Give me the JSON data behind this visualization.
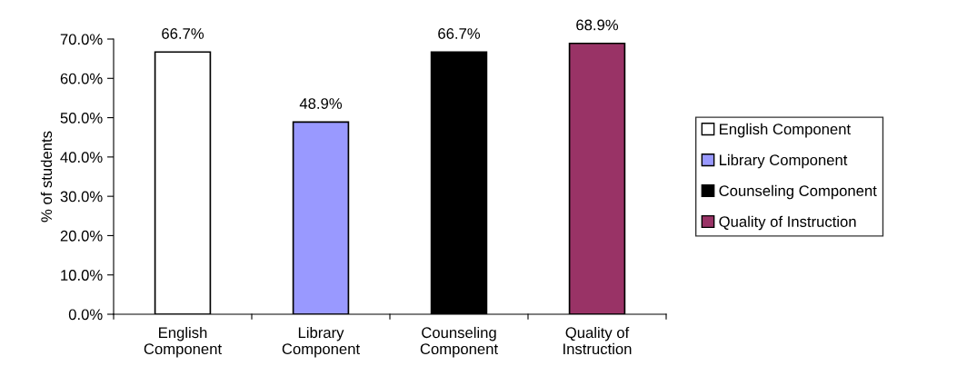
{
  "chart_data": {
    "type": "bar",
    "ylabel": "% of students",
    "categories": [
      "English\nComponent",
      "Library\nComponent",
      "Counseling\nComponent",
      "Quality of\nInstruction"
    ],
    "series": [
      {
        "name": "English Component",
        "color": "#ffffff",
        "values": [
          66.7,
          null,
          null,
          null
        ],
        "value_labels": [
          "66.7%",
          null,
          null,
          null
        ]
      },
      {
        "name": "Library Component",
        "color": "#9999ff",
        "values": [
          null,
          48.9,
          null,
          null
        ],
        "value_labels": [
          null,
          "48.9%",
          null,
          null
        ]
      },
      {
        "name": "Counseling Component",
        "color": "#000000",
        "values": [
          null,
          null,
          66.7,
          null
        ],
        "value_labels": [
          null,
          null,
          "66.7%",
          null
        ]
      },
      {
        "name": "Quality of Instruction",
        "color": "#993366",
        "values": [
          null,
          null,
          null,
          68.9
        ],
        "value_labels": [
          null,
          null,
          null,
          "68.9%"
        ]
      }
    ],
    "ylim": [
      0,
      70
    ],
    "yticks": [
      {
        "value": 0,
        "label": "0.0%"
      },
      {
        "value": 10,
        "label": "10.0%"
      },
      {
        "value": 20,
        "label": "20.0%"
      },
      {
        "value": 30,
        "label": "30.0%"
      },
      {
        "value": 40,
        "label": "40.0%"
      },
      {
        "value": 50,
        "label": "50.0%"
      },
      {
        "value": 60,
        "label": "60.0%"
      },
      {
        "value": 70,
        "label": "70.0%"
      }
    ],
    "grid": false,
    "legend": "right"
  }
}
